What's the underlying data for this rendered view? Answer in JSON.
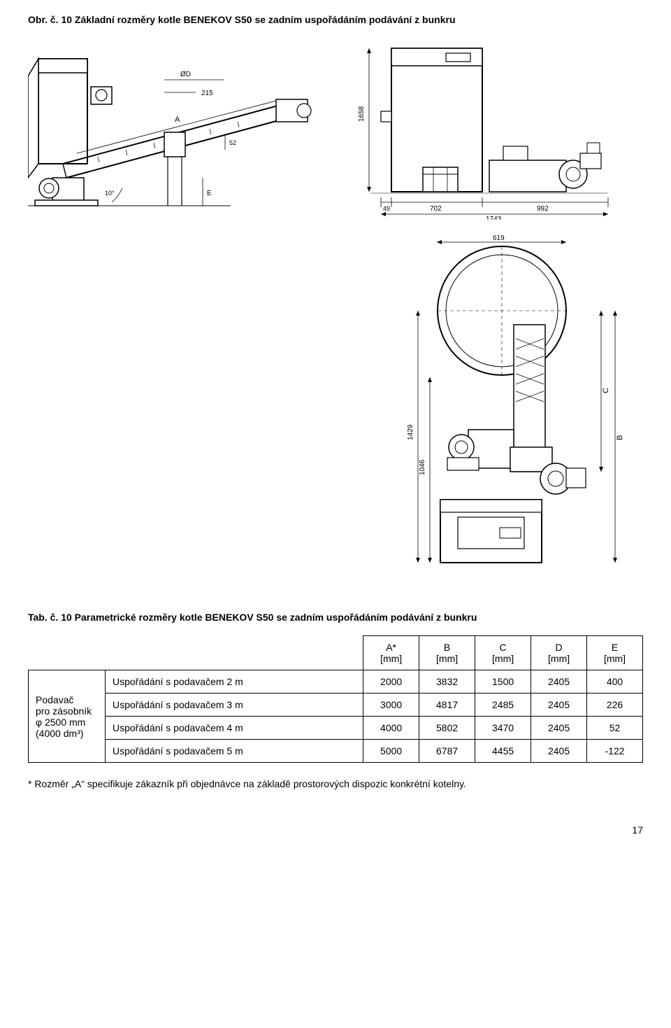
{
  "figure_title": "Obr. č. 10  Základní rozměry kotle BENEKOV S50 se zadním uspořádáním podávání z bunkru",
  "table_title": "Tab. č. 10  Parametrické rozměry kotle BENEKOV S50 se zadním uspořádáním podávání z bunkru",
  "table": {
    "side_label_lines": [
      "Podavač",
      "pro zásobník",
      "φ 2500 mm",
      "(4000 dm³)"
    ],
    "headers": [
      "A*\n[mm]",
      "B\n[mm]",
      "C\n[mm]",
      "D\n[mm]",
      "E\n[mm]"
    ],
    "rows": [
      {
        "label": "Uspořádání s podavačem 2 m",
        "values": [
          "2000",
          "3832",
          "1500",
          "2405",
          "400"
        ]
      },
      {
        "label": "Uspořádání s podavačem 3 m",
        "values": [
          "3000",
          "4817",
          "2485",
          "2405",
          "226"
        ]
      },
      {
        "label": "Uspořádání s podavačem 4 m",
        "values": [
          "4000",
          "5802",
          "3470",
          "2405",
          "52"
        ]
      },
      {
        "label": "Uspořádání s podavačem 5 m",
        "values": [
          "5000",
          "6787",
          "4455",
          "2405",
          "-122"
        ]
      }
    ],
    "col_widths": [
      "auto",
      "250px",
      "85px",
      "85px",
      "85px",
      "85px",
      "85px"
    ]
  },
  "drawing_top_left": {
    "labels": {
      "A": "A",
      "diamD": "ØD",
      "d215": "215",
      "d52": "52",
      "d10deg": "10°",
      "E": "E"
    }
  },
  "drawing_top_right": {
    "labels": {
      "h1658": "1658",
      "d49": "49",
      "d702": "702",
      "d992": "992",
      "d1743": "1743"
    }
  },
  "drawing_bottom": {
    "labels": {
      "d619": "619",
      "C": "C",
      "B": "B",
      "d1429": "1429",
      "d1046": "1046"
    }
  },
  "footnote": "*  Rozměr „A“ specifikuje zákazník při objednávce na základě prostorových dispozic konkrétní kotelny.",
  "page_number": "17"
}
